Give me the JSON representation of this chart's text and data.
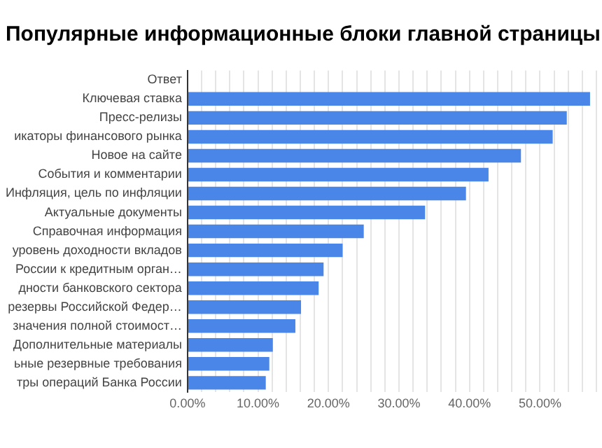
{
  "chart_data": {
    "type": "bar",
    "orientation": "horizontal",
    "title": "Популярные информационные блоки главной страницы",
    "categories": [
      "Ответ",
      "Ключевая ставка",
      "Пресс-релизы",
      "икаторы финансового рынка",
      "Новое на сайте",
      "События и комментарии",
      "Инфляция, цель по инфляции",
      "Актуальные документы",
      "Справочная информация",
      "уровень доходности вкладов",
      "России к кредитным орган…",
      "дности банковского сектора",
      "резервы Российской Федер…",
      "значения полной стоимост…",
      "Дополнительные материалы",
      "ьные резервные требования",
      "тры операций Банка России"
    ],
    "values": [
      null,
      57.1,
      53.8,
      51.8,
      47.3,
      42.7,
      39.5,
      33.7,
      25.0,
      22.0,
      19.3,
      18.6,
      16.1,
      15.3,
      12.1,
      11.6,
      11.1
    ],
    "color": "#4a86e8",
    "xlim": [
      0,
      58
    ],
    "xticks": [
      {
        "value": 0,
        "label": "0.00%"
      },
      {
        "value": 2,
        "label": null
      },
      {
        "value": 4,
        "label": null
      },
      {
        "value": 6,
        "label": null
      },
      {
        "value": 8,
        "label": null
      },
      {
        "value": 10,
        "label": "10.00%"
      },
      {
        "value": 12,
        "label": null
      },
      {
        "value": 14,
        "label": null
      },
      {
        "value": 16,
        "label": null
      },
      {
        "value": 18,
        "label": null
      },
      {
        "value": 20,
        "label": "20.00%"
      },
      {
        "value": 22,
        "label": null
      },
      {
        "value": 24,
        "label": null
      },
      {
        "value": 26,
        "label": null
      },
      {
        "value": 28,
        "label": null
      },
      {
        "value": 30,
        "label": "30.00%"
      },
      {
        "value": 32,
        "label": null
      },
      {
        "value": 34,
        "label": null
      },
      {
        "value": 36,
        "label": null
      },
      {
        "value": 38,
        "label": null
      },
      {
        "value": 40,
        "label": "40.00%"
      },
      {
        "value": 42,
        "label": null
      },
      {
        "value": 44,
        "label": null
      },
      {
        "value": 46,
        "label": null
      },
      {
        "value": 48,
        "label": null
      },
      {
        "value": 50,
        "label": "50.00%"
      },
      {
        "value": 52,
        "label": null
      },
      {
        "value": 54,
        "label": null
      },
      {
        "value": 56,
        "label": null
      },
      {
        "value": 58,
        "label": null
      }
    ],
    "grid": "x"
  }
}
